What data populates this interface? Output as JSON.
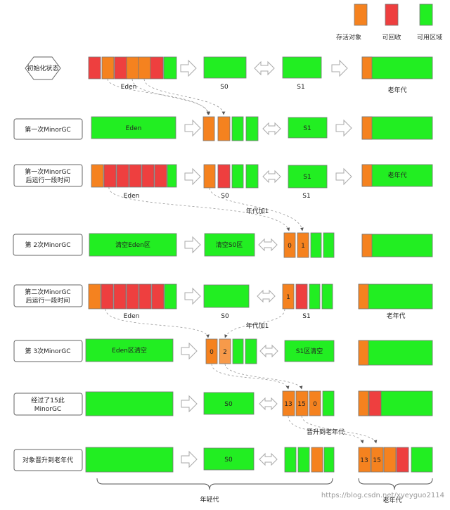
{
  "colors": {
    "survive": "#f5821f",
    "survive_light": "#f79a4a",
    "recycle": "#ee3f3f",
    "free": "#22ee22",
    "free_light": "#44f044",
    "border": "#777777",
    "arrow": "#d6d6d6"
  },
  "legend": {
    "survive": "存活对象",
    "recycle": "可回收",
    "free": "可用区域"
  },
  "rows": {
    "r1": {
      "label": "初始化状态",
      "eden": "Eden",
      "s0": "S0",
      "s1": "S1",
      "old": "老年代"
    },
    "r2": {
      "label": "第一次MinorGC",
      "eden": "Eden",
      "s1": "S1"
    },
    "r3": {
      "label_line1": "第一次MinorGC",
      "label_line2": "后运行一段时间",
      "eden": "Eden",
      "s0": "S0",
      "s1": "S1",
      "old": "老年代",
      "age_note": "年代加1"
    },
    "r4": {
      "label": "第 2次MinorGC",
      "eden": "清空Eden区",
      "s0": "清空S0区",
      "age0": "0",
      "age1": "1"
    },
    "r5": {
      "label_line1": "第二次MinorGC",
      "label_line2": "后运行一段时间",
      "eden": "Eden",
      "s0": "S0",
      "s1": "S1",
      "old": "老年代",
      "age1": "1",
      "age_note": "年代加1"
    },
    "r6": {
      "label": "第 3次MinorGC",
      "eden": "Eden区清空",
      "s1": "S1区清空",
      "age0": "0",
      "age2": "2"
    },
    "r7": {
      "label_line1": "经过了15此",
      "label_line2": "MinorGC",
      "s0": "S0",
      "age13": "13",
      "age15": "15",
      "age0": "0",
      "promote_note": "晋升到老年代"
    },
    "r8": {
      "label": "对象晋升到老年代",
      "s0": "S0",
      "age13": "13",
      "age15": "15"
    }
  },
  "footer": {
    "young": "年轻代",
    "old": "老年代",
    "watermark": "https://blog.csdn.net/xyeyguo2114"
  }
}
